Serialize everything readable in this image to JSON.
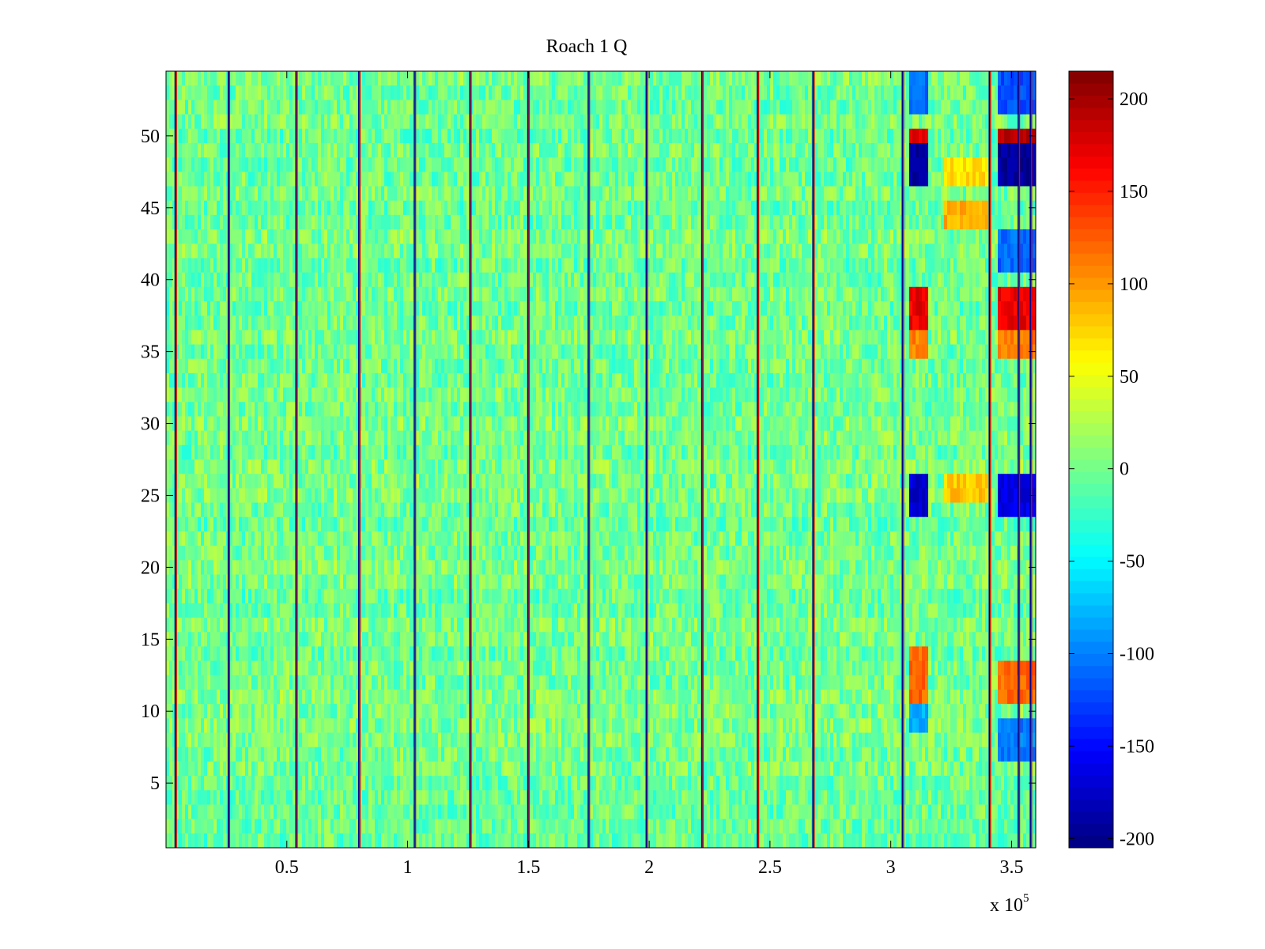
{
  "chart_data": {
    "type": "heatmap",
    "title": "Roach 1 Q",
    "xlabel": "",
    "ylabel": "",
    "x_multiplier_label": "x 10",
    "x_multiplier_exponent": "5",
    "xlim": [
      0.0,
      3.6
    ],
    "ylim": [
      0.5,
      54.5
    ],
    "x_ticks": [
      {
        "value": 0.5,
        "label": "0.5"
      },
      {
        "value": 1.0,
        "label": "1"
      },
      {
        "value": 1.5,
        "label": "1.5"
      },
      {
        "value": 2.0,
        "label": "2"
      },
      {
        "value": 2.5,
        "label": "2.5"
      },
      {
        "value": 3.0,
        "label": "3"
      },
      {
        "value": 3.5,
        "label": "3.5"
      }
    ],
    "y_ticks": [
      {
        "value": 5,
        "label": "5"
      },
      {
        "value": 10,
        "label": "10"
      },
      {
        "value": 15,
        "label": "15"
      },
      {
        "value": 20,
        "label": "20"
      },
      {
        "value": 25,
        "label": "25"
      },
      {
        "value": 30,
        "label": "30"
      },
      {
        "value": 35,
        "label": "35"
      },
      {
        "value": 40,
        "label": "40"
      },
      {
        "value": 45,
        "label": "45"
      },
      {
        "value": 50,
        "label": "50"
      }
    ],
    "colorbar": {
      "colormap": "jet",
      "clim": [
        -205,
        215
      ],
      "ticks": [
        {
          "value": 200,
          "label": "200"
        },
        {
          "value": 150,
          "label": "150"
        },
        {
          "value": 100,
          "label": "100"
        },
        {
          "value": 50,
          "label": "50"
        },
        {
          "value": 0,
          "label": "0"
        },
        {
          "value": -50,
          "label": "-50"
        },
        {
          "value": -100,
          "label": "-100"
        },
        {
          "value": -150,
          "label": "-150"
        },
        {
          "value": -200,
          "label": "-200"
        }
      ]
    },
    "rows": 54,
    "baseline_value": 0,
    "noise_amplitude": 30,
    "vertical_stripes_x": [
      0.04,
      0.26,
      0.54,
      0.8,
      1.03,
      1.26,
      1.5,
      1.75,
      1.99,
      2.22,
      2.45,
      2.68,
      3.05,
      3.41,
      3.53,
      3.58
    ],
    "anomaly_blocks": [
      {
        "x_range": [
          3.07,
          3.15
        ],
        "y_range": [
          46.5,
          49.5
        ],
        "value": -190
      },
      {
        "x_range": [
          3.07,
          3.15
        ],
        "y_range": [
          49.5,
          50.5
        ],
        "value": 170
      },
      {
        "x_range": [
          3.07,
          3.15
        ],
        "y_range": [
          36.5,
          39.5
        ],
        "value": 170
      },
      {
        "x_range": [
          3.07,
          3.15
        ],
        "y_range": [
          34.5,
          36.5
        ],
        "value": 110
      },
      {
        "x_range": [
          3.07,
          3.15
        ],
        "y_range": [
          23.5,
          26.5
        ],
        "value": -170
      },
      {
        "x_range": [
          3.07,
          3.15
        ],
        "y_range": [
          10.5,
          14.5
        ],
        "value": 120
      },
      {
        "x_range": [
          3.07,
          3.15
        ],
        "y_range": [
          8.5,
          10.5
        ],
        "value": -80
      },
      {
        "x_range": [
          3.07,
          3.15
        ],
        "y_range": [
          51.5,
          54.5
        ],
        "value": -110
      },
      {
        "x_range": [
          3.22,
          3.4
        ],
        "y_range": [
          43.5,
          45.5
        ],
        "value": 90
      },
      {
        "x_range": [
          3.22,
          3.4
        ],
        "y_range": [
          46.5,
          48.5
        ],
        "value": 70
      },
      {
        "x_range": [
          3.22,
          3.4
        ],
        "y_range": [
          24.5,
          26.5
        ],
        "value": 80
      },
      {
        "x_range": [
          3.44,
          3.6
        ],
        "y_range": [
          46.5,
          49.5
        ],
        "value": -195
      },
      {
        "x_range": [
          3.44,
          3.6
        ],
        "y_range": [
          49.5,
          50.5
        ],
        "value": 190
      },
      {
        "x_range": [
          3.44,
          3.6
        ],
        "y_range": [
          36.5,
          39.5
        ],
        "value": 170
      },
      {
        "x_range": [
          3.44,
          3.6
        ],
        "y_range": [
          34.5,
          36.5
        ],
        "value": 110
      },
      {
        "x_range": [
          3.44,
          3.6
        ],
        "y_range": [
          23.5,
          26.5
        ],
        "value": -165
      },
      {
        "x_range": [
          3.44,
          3.6
        ],
        "y_range": [
          10.5,
          13.5
        ],
        "value": 120
      },
      {
        "x_range": [
          3.44,
          3.6
        ],
        "y_range": [
          6.5,
          9.5
        ],
        "value": -100
      },
      {
        "x_range": [
          3.44,
          3.6
        ],
        "y_range": [
          51.5,
          54.5
        ],
        "value": -120
      },
      {
        "x_range": [
          3.44,
          3.6
        ],
        "y_range": [
          40.5,
          43.5
        ],
        "value": -110
      }
    ]
  }
}
